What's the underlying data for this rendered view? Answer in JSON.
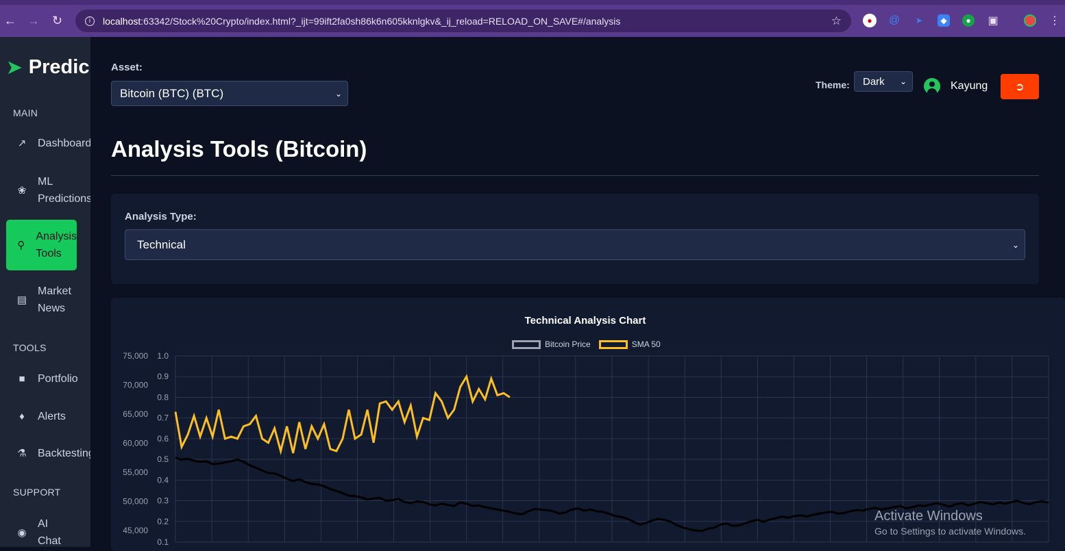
{
  "browser": {
    "url_host": "localhost",
    "url_rest": ":63342/Stock%20Crypto/index.html?_ijt=99ift2fa0sh86k6n605kknlgkv&_ij_reload=RELOAD_ON_SAVE#/analysis"
  },
  "sidebar": {
    "brand": "Predic",
    "sections": {
      "main": "MAIN",
      "tools": "TOOLS",
      "support": "SUPPORT"
    },
    "items": [
      {
        "label": "Dashboard",
        "icon": "chart-line-icon"
      },
      {
        "label": "ML Predictions",
        "icon": "brain-icon"
      },
      {
        "label": "Analysis Tools",
        "icon": "search-chart-icon",
        "active": true
      },
      {
        "label": "Market News",
        "icon": "newspaper-icon"
      },
      {
        "label": "Portfolio",
        "icon": "briefcase-icon"
      },
      {
        "label": "Alerts",
        "icon": "bell-icon"
      },
      {
        "label": "Backtesting",
        "icon": "flask-icon"
      },
      {
        "label": "AI Chat",
        "icon": "chat-icon"
      }
    ]
  },
  "header": {
    "asset_label": "Asset:",
    "asset_value": "Bitcoin (BTC) (BTC)",
    "theme_label": "Theme:",
    "theme_value": "Dark",
    "username": "Kayung"
  },
  "page": {
    "title": "Analysis Tools (Bitcoin)",
    "analysis_type_label": "Analysis Type:",
    "analysis_type_value": "Technical"
  },
  "colors": {
    "accent": "#16c95b",
    "logout": "#ff3d00",
    "sma": "#fbbf24",
    "price": "#000000"
  },
  "watermark": {
    "line1": "Activate Windows",
    "line2": "Go to Settings to activate Windows."
  },
  "chart_data": {
    "type": "line",
    "title": "Technical Analysis Chart",
    "legend_position": "top-center",
    "grid": true,
    "y_left": {
      "ticks": [
        "75,000",
        "70,000",
        "65,000",
        "60,000",
        "55,000",
        "50,000",
        "45,000"
      ],
      "range": [
        43000,
        75000
      ]
    },
    "y_right": {
      "ticks": [
        "1.0",
        "0.9",
        "0.8",
        "0.7",
        "0.6",
        "0.5",
        "0.4",
        "0.3",
        "0.2",
        "0.1"
      ],
      "range": [
        0.1,
        1.0
      ]
    },
    "series": [
      {
        "name": "Bitcoin Price",
        "color": "#000000",
        "values": [
          57500,
          57200,
          57300,
          57000,
          56800,
          56900,
          56400,
          56500,
          56700,
          56900,
          57200,
          56800,
          56200,
          55800,
          55300,
          54900,
          54800,
          54400,
          53900,
          53500,
          53800,
          53300,
          53000,
          52900,
          52600,
          52100,
          51800,
          51400,
          51000,
          50900,
          50700,
          50300,
          50500,
          50600,
          50100,
          50200,
          50400,
          49900,
          49700,
          50000,
          49900,
          49500,
          49300,
          49600,
          49400,
          49200,
          49800,
          49600,
          49200,
          49300,
          49000,
          48800,
          48600,
          48400,
          48200,
          47900,
          47800,
          48300,
          48700,
          48600,
          48500,
          48300,
          47900,
          48100,
          48600,
          48800,
          48400,
          48600,
          48300,
          48200,
          47900,
          47500,
          47300,
          47000,
          46500,
          46000,
          46300,
          46700,
          47000,
          46800,
          46500,
          45900,
          45500,
          45200,
          45000,
          44900,
          45300,
          45500,
          46000,
          46200,
          45800,
          45900,
          46200,
          46600,
          46800,
          46500,
          46900,
          47100,
          47400,
          47200,
          47500,
          47600,
          47400,
          47700,
          47900,
          48100,
          48200,
          47900,
          48000,
          48300,
          48500,
          48400,
          48700,
          48900,
          48600,
          48800,
          49000,
          49200,
          48800,
          49000,
          49300,
          49200,
          49500,
          49700,
          49400,
          49100,
          49500,
          49700,
          49300,
          49600,
          49900,
          49700,
          49500,
          49800,
          49600,
          49900,
          50100,
          49700,
          49500,
          49900,
          50000,
          49800
        ]
      },
      {
        "name": "SMA 50",
        "color": "#fbbf24",
        "values": [
          0.73,
          0.56,
          0.62,
          0.71,
          0.61,
          0.7,
          0.61,
          0.74,
          0.6,
          0.61,
          0.6,
          0.66,
          0.67,
          0.71,
          0.6,
          0.58,
          0.65,
          0.54,
          0.66,
          0.53,
          0.68,
          0.55,
          0.66,
          0.6,
          0.67,
          0.55,
          0.54,
          0.6,
          0.74,
          0.6,
          0.62,
          0.74,
          0.58,
          0.77,
          0.78,
          0.74,
          0.78,
          0.68,
          0.76,
          0.61,
          0.7,
          0.69,
          0.82,
          0.78,
          0.7,
          0.74,
          0.85,
          0.9,
          0.78,
          0.84,
          0.79,
          0.89,
          0.81,
          0.82,
          0.8
        ]
      }
    ]
  }
}
